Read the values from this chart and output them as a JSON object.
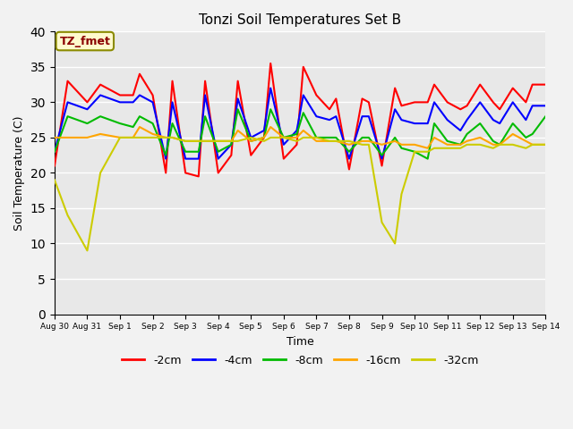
{
  "title": "Tonzi Soil Temperatures Set B",
  "xlabel": "Time",
  "ylabel": "Soil Temperature (C)",
  "xlim": [
    0,
    15
  ],
  "ylim": [
    0,
    40
  ],
  "yticks": [
    0,
    5,
    10,
    15,
    20,
    25,
    30,
    35,
    40
  ],
  "xtick_labels": [
    "Aug 30",
    "Aug 31",
    "Sep 1",
    "Sep 2",
    "Sep 3",
    "Sep 4",
    "Sep 5",
    "Sep 6",
    "Sep 7",
    "Sep 8",
    "Sep 9",
    "Sep 10",
    "Sep 11",
    "Sep 12",
    "Sep 13",
    "Sep 14"
  ],
  "annotation_text": "TZ_fmet",
  "annotation_color": "#8B0000",
  "annotation_bg": "#FFFACD",
  "background_color": "#E8E8E8",
  "grid_color": "#FFFFFF",
  "colors": {
    "-2cm": "#FF0000",
    "-4cm": "#0000FF",
    "-8cm": "#00BB00",
    "-16cm": "#FFA500",
    "-32cm": "#CCCC00"
  },
  "legend_labels": [
    "-2cm",
    "-4cm",
    "-8cm",
    "-16cm",
    "-32cm"
  ],
  "legend_colors": [
    "#FF0000",
    "#0000FF",
    "#00BB00",
    "#FFA500",
    "#CCCC00"
  ],
  "x_2cm": [
    0,
    0.4,
    1,
    1.4,
    2,
    2.4,
    2.6,
    3,
    3.4,
    3.6,
    4,
    4.4,
    4.6,
    5,
    5.4,
    5.6,
    6,
    6.4,
    6.6,
    7,
    7.4,
    7.6,
    8,
    8.4,
    8.6,
    9,
    9.4,
    9.6,
    10,
    10.4,
    10.6,
    11,
    11.4,
    11.6,
    12,
    12.4,
    12.6,
    13,
    13.4,
    13.6,
    14,
    14.4,
    14.6,
    15
  ],
  "y_2cm": [
    21,
    33,
    30,
    32.5,
    31,
    31,
    34,
    31,
    20,
    33,
    20,
    19.5,
    33,
    20,
    22.5,
    33,
    22.5,
    25,
    35.5,
    22,
    24,
    35,
    31,
    29,
    30.5,
    20.5,
    30.5,
    30,
    21,
    32,
    29.5,
    30,
    30,
    32.5,
    30,
    29,
    29.5,
    32.5,
    30,
    29,
    32,
    30,
    32.5,
    32.5
  ],
  "x_4cm": [
    0,
    0.4,
    1,
    1.4,
    2,
    2.4,
    2.6,
    3,
    3.4,
    3.6,
    4,
    4.4,
    4.6,
    5,
    5.4,
    5.6,
    6,
    6.4,
    6.6,
    7,
    7.4,
    7.6,
    8,
    8.4,
    8.6,
    9,
    9.4,
    9.6,
    10,
    10.4,
    10.6,
    11,
    11.4,
    11.6,
    12,
    12.4,
    12.6,
    13,
    13.4,
    13.6,
    14,
    14.4,
    14.6,
    15
  ],
  "y_4cm": [
    23,
    30,
    29,
    31,
    30,
    30,
    31,
    30,
    22,
    30,
    22,
    22,
    31,
    22,
    24,
    30.5,
    25,
    26,
    32,
    24,
    26,
    31,
    28,
    27.5,
    28,
    22,
    28,
    28,
    22,
    29,
    27.5,
    27,
    27,
    30,
    27.5,
    26,
    27.5,
    30,
    27.5,
    27,
    30,
    27.5,
    29.5,
    29.5
  ],
  "x_8cm": [
    0,
    0.4,
    1,
    1.4,
    2,
    2.4,
    2.6,
    3,
    3.4,
    3.6,
    4,
    4.4,
    4.6,
    5,
    5.4,
    5.6,
    6,
    6.4,
    6.6,
    7,
    7.4,
    7.6,
    8,
    8.4,
    8.6,
    9,
    9.4,
    9.6,
    10,
    10.4,
    10.6,
    11,
    11.4,
    11.6,
    12,
    12.4,
    12.6,
    13,
    13.4,
    13.6,
    14,
    14.4,
    14.6,
    15
  ],
  "y_8cm": [
    23,
    28,
    27,
    28,
    27,
    26.5,
    28,
    27,
    22.5,
    27,
    23,
    23,
    28,
    23,
    24,
    29,
    24.5,
    25,
    29,
    25,
    25.5,
    28.5,
    25,
    25,
    25,
    23,
    25,
    25,
    22.5,
    25,
    23.5,
    23,
    22,
    27,
    24.5,
    24,
    25.5,
    27,
    24.5,
    24,
    27,
    25,
    25.5,
    28
  ],
  "x_16cm": [
    0,
    0.4,
    1,
    1.4,
    2,
    2.4,
    2.6,
    3,
    3.4,
    3.6,
    4,
    4.4,
    4.6,
    5,
    5.4,
    5.6,
    6,
    6.4,
    6.6,
    7,
    7.4,
    7.6,
    8,
    8.4,
    8.6,
    9,
    9.4,
    9.6,
    10,
    10.4,
    10.6,
    11,
    11.4,
    11.6,
    12,
    12.4,
    12.6,
    13,
    13.4,
    13.6,
    14,
    14.4,
    14.6,
    15
  ],
  "y_16cm": [
    25,
    25,
    25,
    25.5,
    25,
    25,
    26.5,
    25.5,
    25,
    25,
    24.5,
    24.5,
    24.5,
    24.5,
    24.5,
    26,
    24.5,
    25,
    26.5,
    25,
    25,
    26,
    24.5,
    24.5,
    24.5,
    24,
    24.5,
    24.5,
    24,
    24.5,
    24,
    24,
    23.5,
    25,
    24,
    24,
    24.5,
    25,
    24,
    24,
    25.5,
    24.5,
    24,
    24
  ],
  "x_32cm": [
    0,
    0.4,
    1,
    1.4,
    2,
    2.4,
    2.6,
    3,
    3.4,
    3.6,
    4,
    4.4,
    4.6,
    5,
    5.4,
    5.6,
    6,
    6.4,
    6.6,
    7,
    7.4,
    7.6,
    8,
    8.4,
    8.6,
    9,
    9.4,
    9.6,
    10,
    10.4,
    10.6,
    11,
    11.4,
    11.6,
    12,
    12.4,
    12.6,
    13,
    13.4,
    13.6,
    14,
    14.4,
    14.6,
    15
  ],
  "y_32cm": [
    19,
    14,
    9,
    20,
    25,
    25,
    25,
    25,
    25,
    25,
    24.5,
    24.5,
    24.5,
    24.5,
    24.5,
    24.5,
    25,
    24.5,
    25,
    25,
    24.5,
    25,
    25,
    24.5,
    24.5,
    24.5,
    24,
    24,
    13,
    10,
    17,
    23,
    23,
    23.5,
    23.5,
    23.5,
    24,
    24,
    23.5,
    24,
    24,
    23.5,
    24,
    24
  ]
}
